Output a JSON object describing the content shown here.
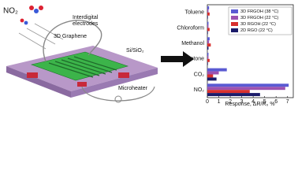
{
  "chart_data": {
    "type": "barh",
    "categories": [
      "Toluene",
      "Chloroform",
      "Methanol",
      "Acetone",
      "CO₂",
      "NO₂"
    ],
    "series": [
      {
        "name": "3D FRGOH (38 °C)",
        "color": "#5a5ad2",
        "values": [
          0.15,
          0.1,
          0.2,
          0.1,
          1.7,
          7.1
        ]
      },
      {
        "name": "3D FRGOH (22 °C)",
        "color": "#9c52b0",
        "values": [
          0.1,
          0.1,
          0.15,
          0.1,
          1.0,
          6.8
        ]
      },
      {
        "name": "3D RGOH (22 °C)",
        "color": "#d8302e",
        "values": [
          0.2,
          0.2,
          0.3,
          0.2,
          0.5,
          3.7
        ]
      },
      {
        "name": "2D RGO (22 °C)",
        "color": "#1b1b6a",
        "values": [
          0.05,
          0.05,
          0.1,
          0.05,
          0.8,
          4.6
        ]
      }
    ],
    "xlim": [
      0,
      7.5
    ],
    "xticks": [
      0,
      1,
      2,
      3,
      4,
      5,
      6,
      7
    ],
    "xlabel": "Response, ΔR/R₀ %",
    "legend": "upper right"
  },
  "diagram": {
    "gas": "NO₂",
    "electrodes": [
      "Interdigital",
      "electrodes"
    ],
    "graphene": "3D Graphene",
    "substrate": "Si/SiO₂",
    "heater": "Microheater"
  }
}
